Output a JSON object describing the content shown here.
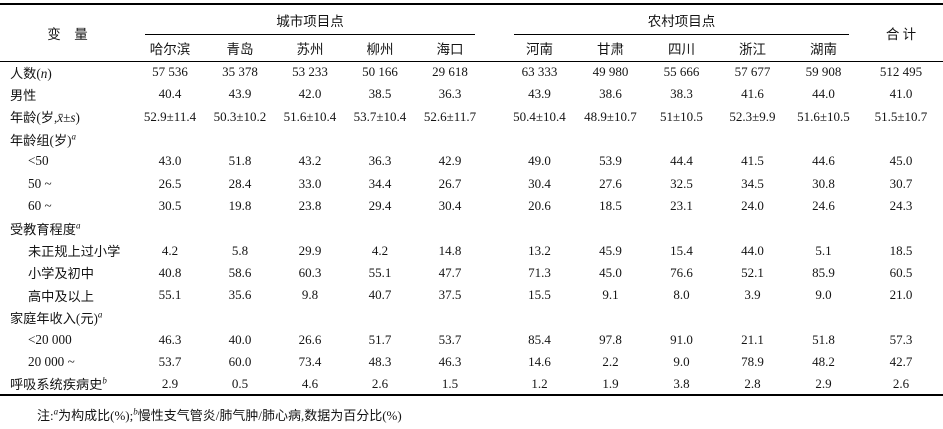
{
  "table": {
    "variable_header": "变　量",
    "total_header": "合 计",
    "groups": [
      {
        "label": "城市项目点",
        "columns": [
          "哈尔滨",
          "青岛",
          "苏州",
          "柳州",
          "海口"
        ]
      },
      {
        "label": "农村项目点",
        "columns": [
          "河南",
          "甘肃",
          "四川",
          "浙江",
          "湖南"
        ]
      }
    ],
    "rows": [
      {
        "label": "人数(*n*)",
        "indent": false,
        "values": [
          "57 536",
          "35 378",
          "53 233",
          "50 166",
          "29 618",
          "63 333",
          "49 980",
          "55 666",
          "57 677",
          "59 908",
          "512 495"
        ]
      },
      {
        "label": "男性",
        "indent": false,
        "values": [
          "40.4",
          "43.9",
          "42.0",
          "38.5",
          "36.3",
          "43.9",
          "38.6",
          "38.3",
          "41.6",
          "44.0",
          "41.0"
        ]
      },
      {
        "label": "年龄(岁,*x̄*±*s*)",
        "indent": false,
        "values": [
          "52.9±11.4",
          "50.3±10.2",
          "51.6±10.4",
          "53.7±10.4",
          "52.6±11.7",
          "50.4±10.4",
          "48.9±10.7",
          "51±10.5",
          "52.3±9.9",
          "51.6±10.5",
          "51.5±10.7"
        ]
      },
      {
        "label": "年龄组(岁)^a^",
        "indent": false,
        "values": []
      },
      {
        "label": "<50",
        "indent": true,
        "values": [
          "43.0",
          "51.8",
          "43.2",
          "36.3",
          "42.9",
          "49.0",
          "53.9",
          "44.4",
          "41.5",
          "44.6",
          "45.0"
        ]
      },
      {
        "label": "50 ~",
        "indent": true,
        "values": [
          "26.5",
          "28.4",
          "33.0",
          "34.4",
          "26.7",
          "30.4",
          "27.6",
          "32.5",
          "34.5",
          "30.8",
          "30.7"
        ]
      },
      {
        "label": "60 ~",
        "indent": true,
        "values": [
          "30.5",
          "19.8",
          "23.8",
          "29.4",
          "30.4",
          "20.6",
          "18.5",
          "23.1",
          "24.0",
          "24.6",
          "24.3"
        ]
      },
      {
        "label": "受教育程度^a^",
        "indent": false,
        "values": []
      },
      {
        "label": "未正规上过小学",
        "indent": true,
        "values": [
          "4.2",
          "5.8",
          "29.9",
          "4.2",
          "14.8",
          "13.2",
          "45.9",
          "15.4",
          "44.0",
          "5.1",
          "18.5"
        ]
      },
      {
        "label": "小学及初中",
        "indent": true,
        "values": [
          "40.8",
          "58.6",
          "60.3",
          "55.1",
          "47.7",
          "71.3",
          "45.0",
          "76.6",
          "52.1",
          "85.9",
          "60.5"
        ]
      },
      {
        "label": "高中及以上",
        "indent": true,
        "values": [
          "55.1",
          "35.6",
          "9.8",
          "40.7",
          "37.5",
          "15.5",
          "9.1",
          "8.0",
          "3.9",
          "9.0",
          "21.0"
        ]
      },
      {
        "label": "家庭年收入(元)^a^",
        "indent": false,
        "values": []
      },
      {
        "label": "<20 000",
        "indent": true,
        "values": [
          "46.3",
          "40.0",
          "26.6",
          "51.7",
          "53.7",
          "85.4",
          "97.8",
          "91.0",
          "21.1",
          "51.8",
          "57.3"
        ]
      },
      {
        "label": "20 000 ~",
        "indent": true,
        "values": [
          "53.7",
          "60.0",
          "73.4",
          "48.3",
          "46.3",
          "14.6",
          "2.2",
          "9.0",
          "78.9",
          "48.2",
          "42.7"
        ]
      },
      {
        "label": "呼吸系统疾病史^b^",
        "indent": false,
        "values": [
          "2.9",
          "0.5",
          "4.6",
          "2.6",
          "1.5",
          "1.2",
          "1.9",
          "3.8",
          "2.8",
          "2.9",
          "2.6"
        ]
      }
    ]
  },
  "footnote": "注:^a^为构成比(%);^b^慢性支气管炎/肺气肿/肺心病,数据为百分比(%)"
}
